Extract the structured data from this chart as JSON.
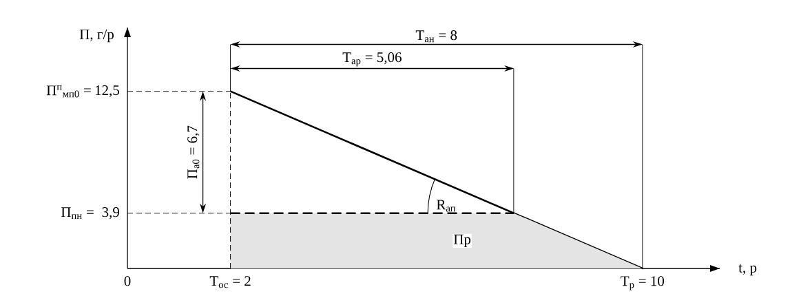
{
  "chart_data": {
    "type": "line",
    "xlabel": "t, р",
    "ylabel": "П, г/р",
    "xlim": [
      0,
      11.5
    ],
    "ylim": [
      0,
      17
    ],
    "xticks": [
      {
        "value": 0,
        "label": "0"
      },
      {
        "value": 2,
        "label": "Т$_{ос}$ = 2"
      },
      {
        "value": 10,
        "label": "Т$_{р}$ = 10"
      }
    ],
    "yticks": [
      {
        "value": 3.9,
        "label": "3,9"
      },
      {
        "value": 12.5,
        "label": "12,5"
      }
    ],
    "series": [
      {
        "x": [
          2,
          10
        ],
        "values": [
          12.5,
          0
        ],
        "color": "#000000",
        "line_style": "solid"
      },
      {
        "type": "area",
        "x": [
          2,
          7.5,
          10
        ],
        "values": [
          3.9,
          3.9,
          0
        ],
        "color": "#e4e4e4"
      }
    ],
    "ref_lines": [
      {
        "axis": "y",
        "value": 12.5,
        "line_style": "dashed",
        "color": "#000000"
      },
      {
        "axis": "y",
        "value": 3.9,
        "line_style": "dashed",
        "color": "#000000"
      },
      {
        "axis": "x",
        "value": 2,
        "line_style": "dashed",
        "color": "#000000"
      },
      {
        "axis": "x",
        "value": 2,
        "line_style": "solid",
        "color": "#000000"
      },
      {
        "axis": "x",
        "value": 7.5,
        "line_style": "solid",
        "color": "#000000"
      },
      {
        "axis": "x",
        "value": 10,
        "line_style": "solid",
        "color": "#000000"
      }
    ],
    "annotations": [
      "П$_{пн}$ =",
      "П$^{п}$$_{мп0}$ =",
      "Т$_{ан}$ = 8",
      "Т$_{ар}$ = 5,06",
      "П$_{а0}$ = 6,7",
      "R$_{ап}$",
      "Пр"
    ]
  }
}
